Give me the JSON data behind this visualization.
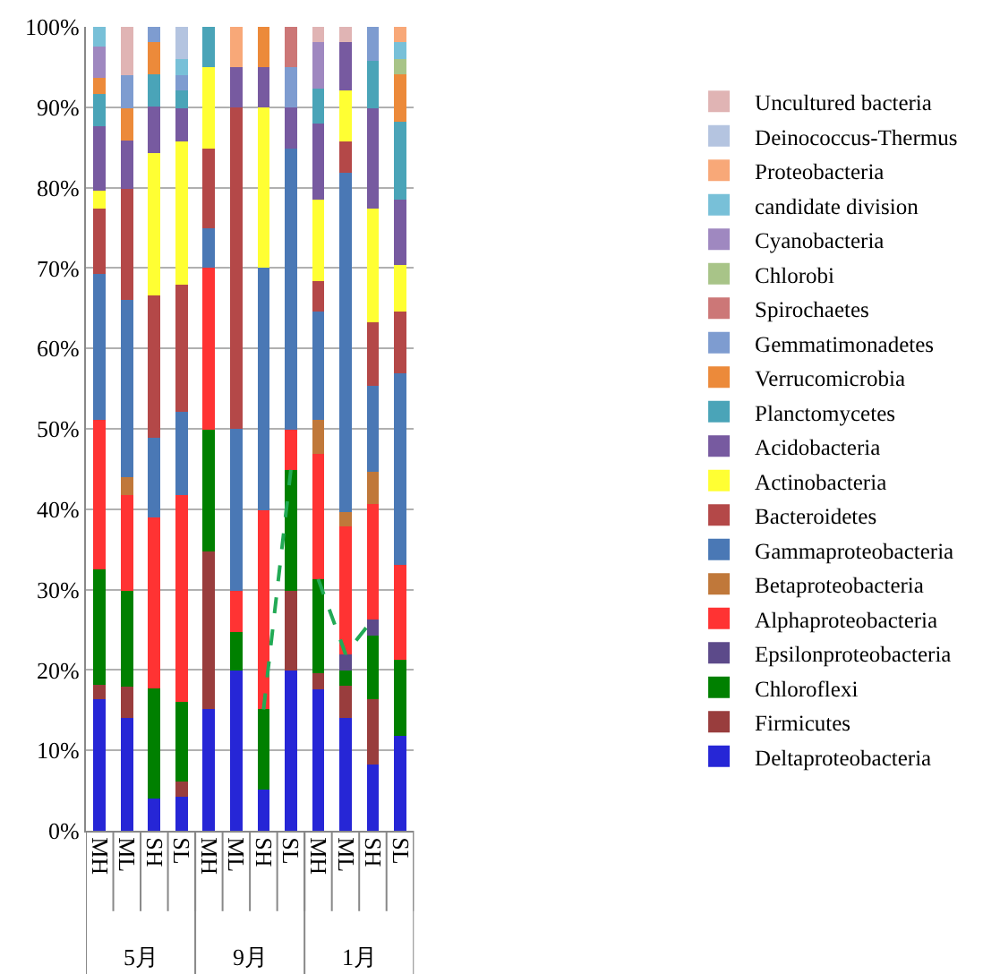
{
  "chart_data": {
    "type": "bar",
    "stacked": true,
    "legend": "right",
    "grid": "y",
    "ylim": [
      0,
      100
    ],
    "yticks": [
      {
        "value": 0,
        "label": "0%"
      },
      {
        "value": 10,
        "label": "10%"
      },
      {
        "value": 20,
        "label": "20%"
      },
      {
        "value": 30,
        "label": "30%"
      },
      {
        "value": 40,
        "label": "40%"
      },
      {
        "value": 50,
        "label": "50%"
      },
      {
        "value": 60,
        "label": "60%"
      },
      {
        "value": 70,
        "label": "70%"
      },
      {
        "value": 80,
        "label": "80%"
      },
      {
        "value": 90,
        "label": "90%"
      },
      {
        "value": 100,
        "label": "100%"
      }
    ],
    "categories": [
      "MH",
      "ML",
      "SH",
      "SL",
      "MH",
      "ML",
      "SH",
      "SL",
      "MH",
      "ML",
      "SH",
      "SL"
    ],
    "annotations": [
      "5月",
      "9月",
      "1月"
    ],
    "series": [
      {
        "name": "Deltaproteobacteria",
        "color": "#2626d6",
        "values": [
          16.4,
          14,
          4,
          4.2,
          15.1,
          19.9,
          5.1,
          19.9,
          17.6,
          14,
          8.2,
          11.8
        ]
      },
      {
        "name": "Firmicutes",
        "color": "#993d3d",
        "values": [
          1.8,
          3.9,
          0,
          1.9,
          19.7,
          0,
          0,
          10,
          2,
          4,
          8.2,
          0
        ]
      },
      {
        "name": "Chloroflexi",
        "color": "#008000",
        "values": [
          14.3,
          11.9,
          13.7,
          9.9,
          15.1,
          4.8,
          10,
          15,
          11.7,
          1.9,
          7.9,
          9.5
        ]
      },
      {
        "name": "Epsilonproteobacteria",
        "color": "#5c4a8a",
        "values": [
          0,
          0,
          0,
          0,
          0,
          0,
          0,
          0,
          0,
          2,
          2,
          0
        ]
      },
      {
        "name": "Alphaproteobacteria",
        "color": "#ff3333",
        "values": [
          18.6,
          12,
          21.3,
          25.8,
          20.1,
          5.2,
          24.8,
          5,
          15.6,
          16,
          14.3,
          11.8
        ]
      },
      {
        "name": "Betaproteobacteria",
        "color": "#c0783a",
        "values": [
          0,
          2.2,
          0,
          0,
          0,
          0,
          0,
          0,
          4.2,
          1.7,
          4.1,
          0
        ]
      },
      {
        "name": "Gammaproteobacteria",
        "color": "#4a78b5",
        "values": [
          18.2,
          22,
          9.9,
          10.3,
          4.9,
          20.1,
          30.1,
          35,
          13.5,
          42.3,
          10.6,
          23.8
        ]
      },
      {
        "name": "Bacteroidetes",
        "color": "#b44848",
        "values": [
          8.1,
          13.9,
          17.7,
          15.8,
          10,
          40,
          0,
          0,
          3.8,
          3.9,
          7.9,
          7.7
        ]
      },
      {
        "name": "Actinobacteria",
        "color": "#ffff33",
        "values": [
          2.2,
          0,
          17.7,
          17.9,
          10.1,
          0,
          20,
          0,
          10.1,
          6.3,
          14.2,
          5.8
        ]
      },
      {
        "name": "Acidobacteria",
        "color": "#775aa0",
        "values": [
          8,
          6,
          5.8,
          4.1,
          0,
          5,
          5,
          5.1,
          9.5,
          6,
          12.5,
          8.1
        ]
      },
      {
        "name": "Planctomycetes",
        "color": "#4aa4b8",
        "values": [
          4.1,
          0,
          4,
          2.2,
          5,
          0,
          0,
          0,
          4.3,
          0,
          5.9,
          9.7
        ]
      },
      {
        "name": "Verrucomicrobia",
        "color": "#ec8a3a",
        "values": [
          1.9,
          4,
          4,
          0,
          0,
          0,
          5,
          0,
          0,
          0,
          0,
          5.9
        ]
      },
      {
        "name": "Gemmatimonadetes",
        "color": "#7e9cd0",
        "values": [
          0,
          4.1,
          1.9,
          1.9,
          0,
          0,
          0,
          5,
          0,
          0,
          4.2,
          0
        ]
      },
      {
        "name": "Spirochaetes",
        "color": "#cc7777",
        "values": [
          0,
          0,
          0,
          0,
          0,
          0,
          0,
          5,
          0,
          0,
          0,
          0
        ]
      },
      {
        "name": "Chlorobi",
        "color": "#a8c488",
        "values": [
          0,
          0,
          0,
          0,
          0,
          0,
          0,
          0,
          0,
          0,
          0,
          1.9
        ]
      },
      {
        "name": "Cyanobacteria",
        "color": "#9f88c0",
        "values": [
          4,
          0,
          0,
          0,
          0,
          0,
          0,
          0,
          5.8,
          0,
          0,
          0
        ]
      },
      {
        "name": "candidate division",
        "color": "#78c0d8",
        "values": [
          2.4,
          0,
          0,
          2,
          0,
          0,
          0,
          0,
          0,
          0,
          0,
          2.1
        ]
      },
      {
        "name": "Proteobacteria",
        "color": "#f8a878",
        "values": [
          0,
          0,
          0,
          0,
          0,
          5,
          0,
          0,
          0,
          0,
          0,
          1.9
        ]
      },
      {
        "name": "Deinococcus-Thermus",
        "color": "#b4c4e0",
        "values": [
          0,
          0,
          0,
          4,
          0,
          0,
          0,
          0,
          0,
          0,
          0,
          0
        ]
      },
      {
        "name": "Uncultured bacteria",
        "color": "#e0b4b4",
        "values": [
          0,
          6,
          0,
          0,
          0,
          0,
          0,
          0,
          1.9,
          1.9,
          0,
          0
        ]
      },
      {
        "type": "line",
        "line_style": "dashed",
        "color": "#22aa55",
        "values": [
          null,
          null,
          null,
          null,
          null,
          null,
          15.1,
          44.9,
          null,
          null,
          null,
          null
        ]
      },
      {
        "type": "line",
        "line_style": "dashed",
        "color": "#22aa55",
        "values": [
          null,
          null,
          null,
          null,
          null,
          null,
          null,
          null,
          31.3,
          22,
          26.3,
          null
        ]
      }
    ]
  }
}
